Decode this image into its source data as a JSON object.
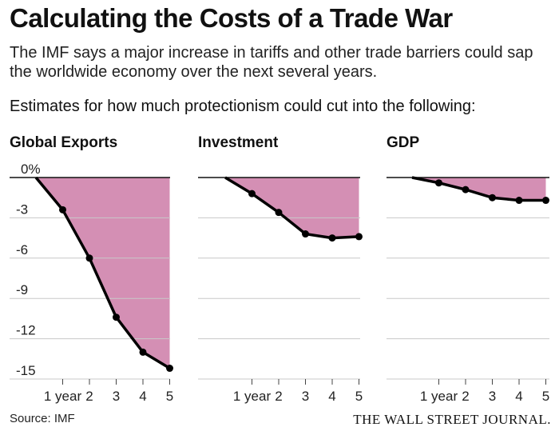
{
  "header": {
    "title": "Calculating the Costs of a Trade War",
    "subtitle": "The IMF says a major increase in tariffs and other trade barriers could sap the worldwide economy over the next several years.",
    "subhead": "Estimates for how much protectionism could cut into the following:"
  },
  "colors": {
    "fill": "#d48fb4",
    "line": "#000000",
    "grid": "#c8c8c8"
  },
  "chart_data": {
    "type": "area",
    "categories": [
      "1 year",
      "2",
      "3",
      "4",
      "5"
    ],
    "yticks": [
      "0%",
      "-3",
      "-6",
      "-9",
      "-12",
      "-15"
    ],
    "ylim": [
      -15,
      0
    ],
    "grid": true,
    "panels": [
      {
        "title": "Global Exports",
        "x": [
          0,
          1,
          2,
          3,
          4,
          5
        ],
        "values": [
          0,
          -2.4,
          -6.0,
          -10.4,
          -13.0,
          -14.2
        ]
      },
      {
        "title": "Investment",
        "x": [
          0,
          1,
          2,
          3,
          4,
          5
        ],
        "values": [
          0,
          -1.2,
          -2.6,
          -4.2,
          -4.5,
          -4.4
        ]
      },
      {
        "title": "GDP",
        "x": [
          0,
          1,
          2,
          3,
          4,
          5
        ],
        "values": [
          0,
          -0.4,
          -0.9,
          -1.5,
          -1.7,
          -1.7
        ]
      }
    ]
  },
  "footer": {
    "source": "Source: IMF",
    "publisher": "THE WALL STREET JOURNAL."
  }
}
